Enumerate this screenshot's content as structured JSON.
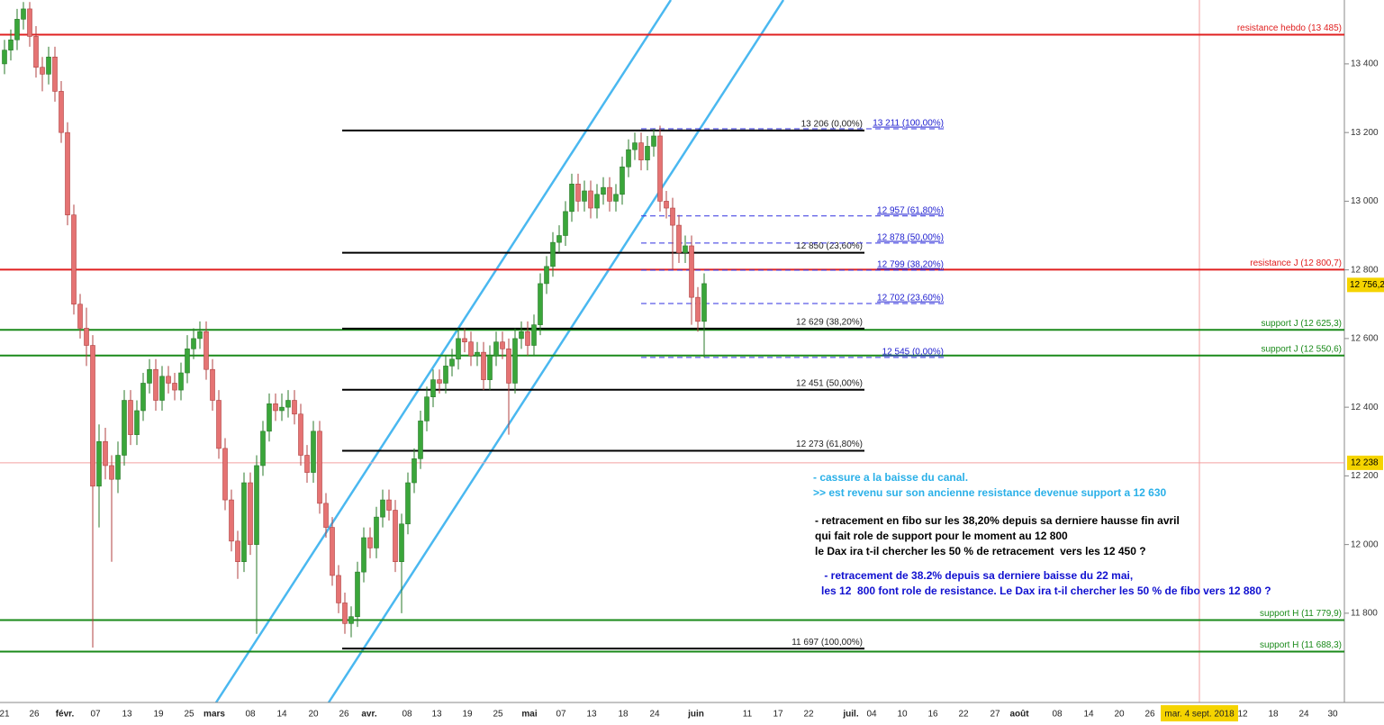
{
  "chart_data": {
    "type": "candlestick",
    "x_labels": [
      "21",
      "26",
      "févr.",
      "07",
      "13",
      "19",
      "25",
      "mars",
      "08",
      "14",
      "20",
      "26",
      "avr.",
      "08",
      "13",
      "19",
      "25",
      "mai",
      "07",
      "13",
      "18",
      "24",
      "juin",
      "11",
      "17",
      "22",
      "juil.",
      "04",
      "10",
      "16",
      "22",
      "27",
      "août",
      "08",
      "14",
      "20",
      "26",
      "mar. 4 sept. 2018",
      "12",
      "18",
      "24",
      "30"
    ],
    "open": [
      13400,
      13440,
      13470,
      13530,
      13560,
      13480,
      13390,
      13370,
      13420,
      13320,
      13200,
      12960,
      12700,
      12630,
      12580,
      12170,
      12300,
      12230,
      12190,
      12260,
      12420,
      12320,
      12390,
      12470,
      12510,
      12420,
      12490,
      12470,
      12450,
      12500,
      12570,
      12600,
      12620,
      12510,
      12420,
      12280,
      12130,
      12010,
      11950,
      12180,
      12000,
      12230,
      12330,
      12410,
      12390,
      12400,
      12420,
      12380,
      12260,
      12210,
      12330,
      12120,
      12050,
      11910,
      11830,
      11770,
      11790,
      11920,
      12020,
      11990,
      12080,
      12130,
      12100,
      11950,
      12060,
      12180,
      12250,
      12360,
      12430,
      12480,
      12470,
      12520,
      12540,
      12600,
      12590,
      12550,
      12560,
      12480,
      12550,
      12590,
      12570,
      12470,
      12600,
      12620,
      12580,
      12640,
      12760,
      12810,
      12880,
      12900,
      12970,
      13050,
      13000,
      13030,
      12980,
      13020,
      13040,
      13000,
      13020,
      13100,
      13150,
      13170,
      13120,
      13160,
      13190,
      13000,
      12980,
      12930,
      12850,
      12870,
      12720,
      12650
    ],
    "high": [
      13470,
      13500,
      13560,
      13580,
      13580,
      13510,
      13420,
      13450,
      13450,
      13350,
      13230,
      12990,
      12730,
      12690,
      12610,
      12350,
      12340,
      12260,
      12300,
      12450,
      12450,
      12420,
      12500,
      12540,
      12540,
      12520,
      12520,
      12500,
      12530,
      12610,
      12630,
      12650,
      12650,
      12540,
      12450,
      12310,
      12160,
      12040,
      12210,
      12210,
      12260,
      12360,
      12440,
      12440,
      12440,
      12450,
      12450,
      12410,
      12290,
      12360,
      12360,
      12150,
      12080,
      11940,
      11860,
      11820,
      11950,
      12050,
      12050,
      12110,
      12160,
      12160,
      12130,
      12090,
      12210,
      12280,
      12390,
      12460,
      12510,
      12510,
      12550,
      12570,
      12630,
      12630,
      12620,
      12590,
      12590,
      12580,
      12620,
      12620,
      12600,
      12630,
      12650,
      12650,
      12670,
      12790,
      12840,
      12910,
      12930,
      13000,
      13080,
      13080,
      13060,
      13060,
      13050,
      13070,
      13070,
      13050,
      13130,
      13180,
      13200,
      13200,
      13190,
      13211,
      13220,
      13030,
      13010,
      12960,
      12900,
      12900,
      12750,
      12790
    ],
    "low": [
      13370,
      13410,
      13440,
      13500,
      13450,
      13360,
      13320,
      13340,
      13290,
      13170,
      12930,
      12670,
      12600,
      12520,
      11700,
      12050,
      12190,
      11950,
      12150,
      12230,
      12290,
      12290,
      12360,
      12440,
      12390,
      12390,
      12440,
      12420,
      12420,
      12470,
      12540,
      12570,
      12480,
      12390,
      12250,
      12100,
      11980,
      11900,
      11920,
      11970,
      11740,
      12200,
      12300,
      12360,
      12360,
      12370,
      12350,
      12230,
      12180,
      12180,
      12090,
      12020,
      11880,
      11800,
      11740,
      11730,
      11760,
      11890,
      11960,
      11960,
      12050,
      12070,
      11920,
      11800,
      12030,
      12150,
      12220,
      12330,
      12400,
      12440,
      12440,
      12490,
      12510,
      12560,
      12520,
      12520,
      12450,
      12450,
      12520,
      12540,
      12320,
      12440,
      12570,
      12550,
      12550,
      12610,
      12730,
      12780,
      12850,
      12870,
      12940,
      12970,
      12970,
      12950,
      12950,
      12990,
      12970,
      12970,
      12990,
      13070,
      13120,
      13090,
      13090,
      13130,
      12970,
      12950,
      12800,
      12820,
      12820,
      12640,
      12620,
      12545
    ],
    "close": [
      13440,
      13470,
      13530,
      13560,
      13480,
      13390,
      13370,
      13420,
      13320,
      13200,
      12960,
      12700,
      12630,
      12580,
      12170,
      12300,
      12230,
      12190,
      12260,
      12420,
      12320,
      12390,
      12470,
      12510,
      12420,
      12490,
      12470,
      12450,
      12500,
      12570,
      12600,
      12620,
      12510,
      12420,
      12280,
      12130,
      12010,
      11950,
      12180,
      12000,
      12230,
      12330,
      12410,
      12390,
      12400,
      12420,
      12380,
      12260,
      12210,
      12330,
      12120,
      12050,
      11910,
      11830,
      11770,
      11790,
      11920,
      12020,
      11990,
      12080,
      12130,
      12100,
      11950,
      12060,
      12180,
      12250,
      12360,
      12430,
      12480,
      12470,
      12520,
      12540,
      12600,
      12590,
      12550,
      12560,
      12480,
      12550,
      12590,
      12570,
      12470,
      12600,
      12620,
      12580,
      12640,
      12760,
      12810,
      12880,
      12900,
      12970,
      13050,
      13000,
      13030,
      12980,
      13020,
      13040,
      13000,
      13020,
      13100,
      13150,
      13170,
      13120,
      13160,
      13190,
      13000,
      12980,
      12930,
      12850,
      12870,
      12720,
      12650,
      12760
    ],
    "up_color": "#3aa63a",
    "down_color": "#e57373",
    "ylim": [
      11540,
      13586
    ],
    "yticks": [
      {
        "value": 11800,
        "label": "11 800"
      },
      {
        "value": 12000,
        "label": "12 000"
      },
      {
        "value": 12200,
        "label": "12 200"
      },
      {
        "value": 12400,
        "label": "12 400"
      },
      {
        "value": 12600,
        "label": "12 600"
      },
      {
        "value": 12800,
        "label": "12 800"
      },
      {
        "value": 13000,
        "label": "13 000"
      },
      {
        "value": 13200,
        "label": "13 200"
      },
      {
        "value": 13400,
        "label": "13 400"
      }
    ],
    "levels": [
      {
        "value": 13485,
        "label": "resistance hebdo (13 485)",
        "color": "#e02020"
      },
      {
        "value": 12800.7,
        "label": "resistance J (12 800,7)",
        "color": "#e02020"
      },
      {
        "value": 12625.3,
        "label": "support J (12 625,3)",
        "color": "#1a8a1a"
      },
      {
        "value": 12550.6,
        "label": "support J (12 550,6)",
        "color": "#1a8a1a"
      },
      {
        "value": 11779.9,
        "label": "support H (11 779,9)",
        "color": "#1a8a1a"
      },
      {
        "value": 11688.3,
        "label": "support H (11 688,3)",
        "color": "#1a8a1a"
      }
    ],
    "fibo_black": [
      {
        "value": 13206,
        "label": "13 206 (0,00%)"
      },
      {
        "value": 12850,
        "label": "12 850 (23,60%)"
      },
      {
        "value": 12629,
        "label": "12 629 (38,20%)"
      },
      {
        "value": 12451,
        "label": "12 451 (50,00%)"
      },
      {
        "value": 12273,
        "label": "12 273 (61,80%)"
      },
      {
        "value": 11697,
        "label": "11 697 (100,00%)"
      }
    ],
    "fibo_blue": [
      {
        "value": 13211,
        "label": "13 211 (100,00%)"
      },
      {
        "value": 12957,
        "label": "12 957 (61,80%)"
      },
      {
        "value": 12878,
        "label": "12 878 (50,00%)"
      },
      {
        "value": 12799,
        "label": "12 799 (38,20%)"
      },
      {
        "value": 12702,
        "label": "12 702 (23,60%)"
      },
      {
        "value": 12545,
        "label": "12 545 (0,00%)"
      }
    ],
    "price_tag": {
      "value": 12756.2,
      "label": "12 756,2"
    },
    "crosshair": {
      "value": 12238,
      "label": "12 238"
    },
    "annotations": [
      {
        "color": "#2ab0e8",
        "lines": [
          "- cassure a la baisse du canal.",
          ">> est revenu sur son ancienne resistance devenue support a 12 630"
        ]
      },
      {
        "color": "#000000",
        "lines": [
          "- retracement en fibo sur les 38,20% depuis sa derniere hausse fin avril",
          "qui fait role de support pour le moment au 12 800",
          "le Dax ira t-il chercher les 50 % de retracement  vers les 12 450 ?"
        ]
      },
      {
        "color": "#1010d0",
        "lines": [
          " - retracement de 38.2% depuis sa derniere baisse du 22 mai,",
          "les 12  800 font role de resistance. Le Dax ira t-il chercher les 50 % de fibo vers 12 880 ?"
        ]
      }
    ]
  }
}
